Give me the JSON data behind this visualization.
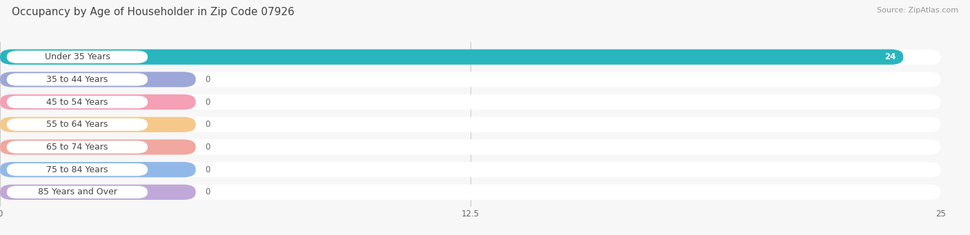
{
  "title": "Occupancy by Age of Householder in Zip Code 07926",
  "source": "Source: ZipAtlas.com",
  "categories": [
    "Under 35 Years",
    "35 to 44 Years",
    "45 to 54 Years",
    "55 to 64 Years",
    "65 to 74 Years",
    "75 to 84 Years",
    "85 Years and Over"
  ],
  "values": [
    24,
    0,
    0,
    0,
    0,
    0,
    0
  ],
  "bar_colors": [
    "#29b5be",
    "#9da8d8",
    "#f4a0b5",
    "#f5c98a",
    "#f0a8a0",
    "#92b8e8",
    "#c0a8d8"
  ],
  "xlim": [
    0,
    25
  ],
  "xticks": [
    0,
    12.5,
    25
  ],
  "bg_color": "#f7f7f7",
  "row_bg_color": "#efefef",
  "title_fontsize": 11,
  "source_fontsize": 8,
  "label_fontsize": 9,
  "value_fontsize": 8.5
}
